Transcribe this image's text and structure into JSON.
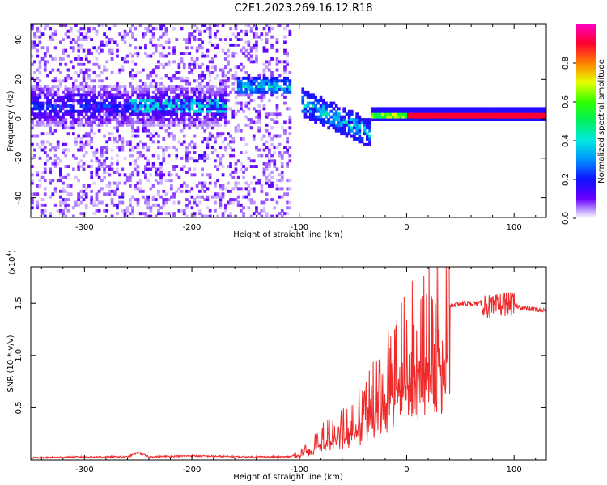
{
  "title": "C2E1.2023.269.16.12.R18",
  "colors": {
    "snr_line": "#ee2b2b",
    "axis": "#000000",
    "background": "#ffffff"
  },
  "chart_data": [
    {
      "type": "heatmap",
      "name": "spectrogram",
      "xlabel": "Height of straight line (km)",
      "ylabel": "Frequency (Hz)",
      "xlim": [
        -350,
        130
      ],
      "ylim": [
        -50,
        48
      ],
      "xticks": [
        -300,
        -200,
        -100,
        0,
        100
      ],
      "yticks": [
        -40,
        -20,
        0,
        20,
        40
      ],
      "colorbar": {
        "label": "Normalized spectral amplitude",
        "range": [
          0,
          1
        ],
        "ticks": [
          0.0,
          0.2,
          0.4,
          0.6,
          0.8
        ],
        "colormap": "rainbow (purple-blue-cyan-green-yellow-red-magenta)"
      },
      "features": [
        {
          "desc": "broadband noise (purple)",
          "x_range": [
            -350,
            -110
          ],
          "freq_range": [
            -50,
            48
          ]
        },
        {
          "desc": "central band",
          "x_range": [
            -350,
            -170
          ],
          "freq": 6,
          "amplitude": 0.4
        },
        {
          "desc": "upshifted feature",
          "x_range": [
            -160,
            -110
          ],
          "freq": 16,
          "amplitude": 0.5
        },
        {
          "desc": "descending cluster",
          "x_range": [
            -100,
            -35
          ],
          "freq": [
            8,
            -8
          ],
          "amplitude": 0.5
        },
        {
          "desc": "carrier line",
          "x_range": [
            -35,
            130
          ],
          "freq": 1.5,
          "amplitude": 0.95
        }
      ]
    },
    {
      "type": "line",
      "name": "snr",
      "xlabel": "Height of straight line (km)",
      "ylabel": "SNR (10 * v/v)",
      "multiplier_label": "(x10",
      "multiplier_exp": "4",
      "xlim": [
        -350,
        130
      ],
      "ylim": [
        0,
        1.85
      ],
      "xticks": [
        -300,
        -200,
        -100,
        0,
        100
      ],
      "yticks": [
        0.5,
        1.0,
        1.5
      ],
      "ytick_labels": [
        "0.5",
        "1.0",
        "1.5"
      ],
      "series": [
        {
          "name": "SNR",
          "x": [
            -350,
            -300,
            -260,
            -250,
            -240,
            -200,
            -150,
            -110,
            -100,
            -90,
            -80,
            -70,
            -60,
            -50,
            -40,
            -30,
            -20,
            -10,
            0,
            10,
            20,
            30,
            40,
            50,
            60,
            70,
            80,
            90,
            100,
            110,
            120,
            130
          ],
          "y": [
            0.02,
            0.03,
            0.03,
            0.07,
            0.03,
            0.04,
            0.03,
            0.03,
            0.06,
            0.12,
            0.22,
            0.28,
            0.35,
            0.4,
            0.5,
            0.65,
            0.8,
            0.95,
            1.05,
            1.18,
            1.3,
            1.4,
            1.48,
            1.5,
            1.5,
            1.5,
            1.45,
            1.5,
            1.48,
            1.45,
            1.44,
            1.43
          ]
        }
      ]
    }
  ]
}
